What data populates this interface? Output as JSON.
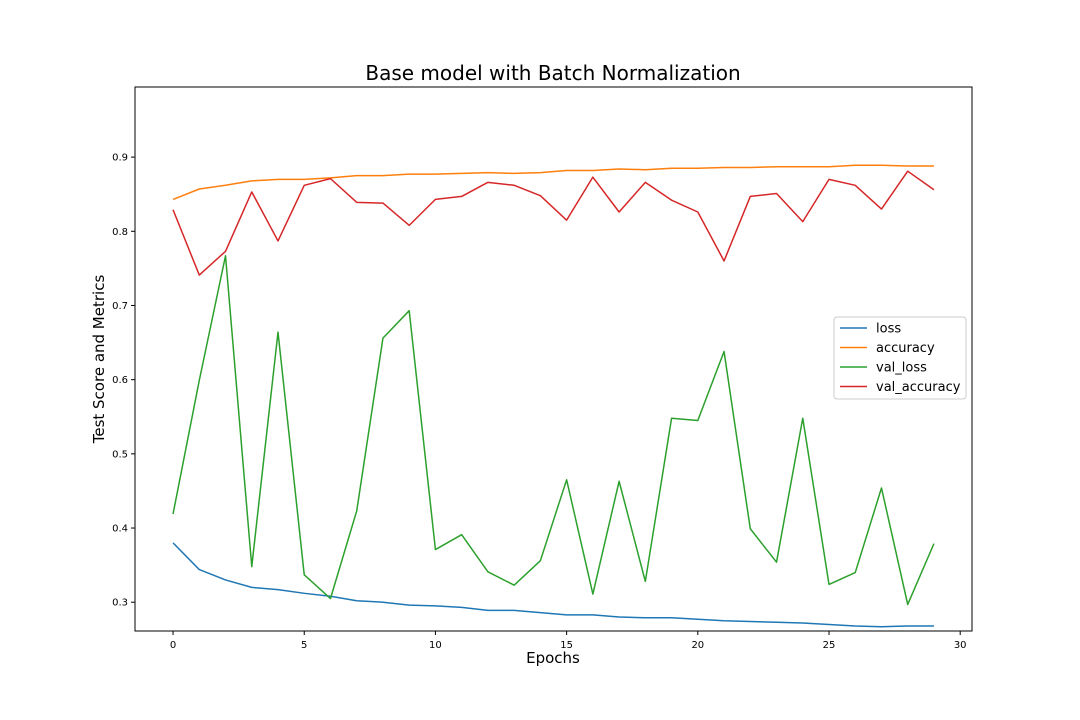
{
  "chart_data": {
    "type": "line",
    "title": "Base model with Batch Normalization",
    "xlabel": "Epochs",
    "ylabel": "Test Score and Metrics",
    "xlim": [
      -1.45,
      30.45
    ],
    "ylim": [
      0.2612,
      0.9945
    ],
    "xticks": [
      0,
      5,
      10,
      15,
      20,
      25,
      30
    ],
    "yticks": [
      0.3,
      0.4,
      0.5,
      0.6,
      0.7,
      0.8,
      0.9
    ],
    "grid": false,
    "legend_position": "center-right",
    "x": [
      0,
      1,
      2,
      3,
      4,
      5,
      6,
      7,
      8,
      9,
      10,
      11,
      12,
      13,
      14,
      15,
      16,
      17,
      18,
      19,
      20,
      21,
      22,
      23,
      24,
      25,
      26,
      27,
      28,
      29
    ],
    "series": [
      {
        "name": "loss",
        "color": "#1f77b4",
        "values": [
          0.38,
          0.344,
          0.33,
          0.32,
          0.317,
          0.312,
          0.308,
          0.302,
          0.3,
          0.296,
          0.295,
          0.293,
          0.289,
          0.289,
          0.286,
          0.283,
          0.283,
          0.28,
          0.279,
          0.279,
          0.277,
          0.275,
          0.274,
          0.273,
          0.272,
          0.27,
          0.268,
          0.267,
          0.268,
          0.268
        ]
      },
      {
        "name": "accuracy",
        "color": "#ff7f0e",
        "values": [
          0.843,
          0.857,
          0.862,
          0.868,
          0.87,
          0.87,
          0.872,
          0.875,
          0.875,
          0.877,
          0.877,
          0.878,
          0.879,
          0.878,
          0.879,
          0.882,
          0.882,
          0.884,
          0.883,
          0.885,
          0.885,
          0.886,
          0.886,
          0.887,
          0.887,
          0.887,
          0.889,
          0.889,
          0.888,
          0.888
        ]
      },
      {
        "name": "val_loss",
        "color": "#2ca02c",
        "values": [
          0.419,
          0.599,
          0.767,
          0.348,
          0.664,
          0.337,
          0.305,
          0.423,
          0.656,
          0.693,
          0.371,
          0.391,
          0.341,
          0.323,
          0.356,
          0.465,
          0.311,
          0.463,
          0.328,
          0.548,
          0.545,
          0.638,
          0.399,
          0.354,
          0.548,
          0.324,
          0.34,
          0.454,
          0.297,
          0.379
        ]
      },
      {
        "name": "val_accuracy",
        "color": "#d62728",
        "values": [
          0.829,
          0.741,
          0.773,
          0.853,
          0.787,
          0.862,
          0.871,
          0.839,
          0.838,
          0.808,
          0.843,
          0.847,
          0.866,
          0.862,
          0.848,
          0.815,
          0.873,
          0.826,
          0.866,
          0.842,
          0.826,
          0.76,
          0.847,
          0.851,
          0.813,
          0.87,
          0.862,
          0.83,
          0.881,
          0.856
        ]
      }
    ]
  }
}
